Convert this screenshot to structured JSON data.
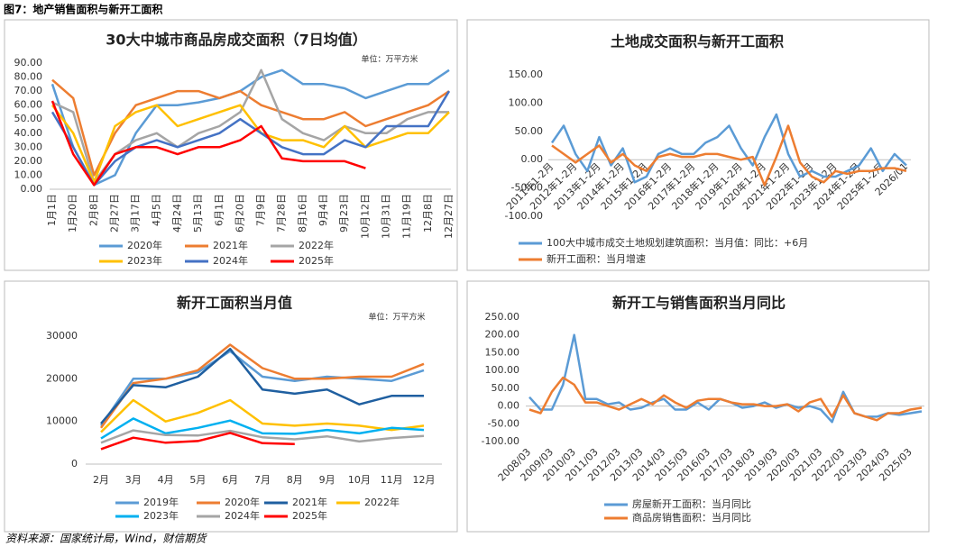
{
  "header": {
    "title": "图7：地产销售面积与新开工面积"
  },
  "source": "资料来源：国家统计局，Wind，财信期货",
  "chart_data": [
    {
      "type": "line",
      "title": "30大中城市商品房成交面积（7日均值）",
      "unit": "单位：万平方米",
      "categories": [
        "1月1日",
        "1月20日",
        "2月8日",
        "2月27日",
        "3月17日",
        "4月5日",
        "4月24日",
        "5月13日",
        "6月1日",
        "6月20日",
        "7月9日",
        "7月28日",
        "8月16日",
        "9月4日",
        "9月23日",
        "10月12日",
        "10月31日",
        "11月19日",
        "12月8日",
        "12月27日"
      ],
      "series": [
        {
          "name": "2020年",
          "color": "#5b9bd5",
          "values": [
            75,
            30,
            3,
            10,
            40,
            60,
            60,
            62,
            65,
            70,
            80,
            85,
            75,
            75,
            72,
            65,
            70,
            75,
            75,
            85
          ]
        },
        {
          "name": "2021年",
          "color": "#ed7d31",
          "values": [
            78,
            65,
            10,
            40,
            60,
            65,
            70,
            70,
            65,
            70,
            60,
            55,
            50,
            50,
            55,
            45,
            50,
            55,
            60,
            70
          ]
        },
        {
          "name": "2022年",
          "color": "#a5a5a5",
          "values": [
            62,
            55,
            5,
            25,
            35,
            40,
            30,
            40,
            45,
            55,
            85,
            50,
            40,
            35,
            45,
            40,
            40,
            50,
            55,
            55
          ]
        },
        {
          "name": "2023年",
          "color": "#ffc000",
          "values": [
            60,
            40,
            5,
            45,
            55,
            60,
            45,
            50,
            55,
            60,
            40,
            35,
            35,
            30,
            45,
            30,
            35,
            40,
            40,
            55
          ]
        },
        {
          "name": "2024年",
          "color": "#4472c4",
          "values": [
            55,
            30,
            3,
            20,
            30,
            35,
            30,
            35,
            40,
            50,
            40,
            30,
            25,
            25,
            35,
            30,
            45,
            45,
            45,
            70
          ]
        },
        {
          "name": "2025年",
          "color": "#ff0000",
          "values": [
            63,
            25,
            3,
            25,
            30,
            30,
            25,
            30,
            30,
            35,
            45,
            22,
            20,
            20,
            20,
            15,
            null,
            null,
            null,
            null
          ]
        }
      ],
      "ylim": [
        0,
        90
      ],
      "yticks": [
        {
          "value": 0,
          "label": "0.00"
        },
        {
          "value": 10,
          "label": "10.00"
        },
        {
          "value": 20,
          "label": "20.00"
        },
        {
          "value": 30,
          "label": "30.00"
        },
        {
          "value": 40,
          "label": "40.00"
        },
        {
          "value": 50,
          "label": "50.00"
        },
        {
          "value": 60,
          "label": "60.00"
        },
        {
          "value": 70,
          "label": "70.00"
        },
        {
          "value": 80,
          "label": "80.00"
        },
        {
          "value": 90,
          "label": "90.00"
        }
      ],
      "legend": "bottom"
    },
    {
      "type": "line",
      "title": "土地成交面积与新开工面积",
      "categories": [
        "2011年1-2月",
        null,
        "2012年1-2月",
        null,
        "2013年1-2月",
        null,
        "2014年1-2月",
        null,
        "2015年1-2月",
        null,
        "2016年1-2月",
        null,
        "2017年1-2月",
        null,
        "2018年1-2月",
        null,
        "2019年1-2月",
        null,
        "2020年1-2月",
        null,
        "2021年1-2月",
        null,
        "2022年1-2月",
        null,
        "2023年1-2月",
        null,
        "2024年1-2月",
        null,
        "2025年1-2月",
        null,
        "2026/01"
      ],
      "series": [
        {
          "name": "100大中城市成交土地规划建筑面积：当月值：同比：+6月",
          "color": "#5b9bd5",
          "values": [
            30,
            60,
            10,
            -20,
            40,
            -10,
            20,
            -40,
            -30,
            10,
            20,
            10,
            10,
            30,
            40,
            60,
            20,
            -10,
            40,
            80,
            10,
            -30,
            -20,
            -30,
            -30,
            -20,
            -10,
            20,
            -20,
            10,
            -10
          ]
        },
        {
          "name": "新开工面积：当月增速",
          "color": "#ed7d31",
          "values": [
            25,
            10,
            -5,
            10,
            25,
            -5,
            10,
            -10,
            -20,
            5,
            10,
            5,
            5,
            10,
            10,
            5,
            0,
            5,
            -45,
            5,
            60,
            -5,
            -30,
            -40,
            -20,
            -25,
            -20,
            -20,
            -15,
            -15,
            -20
          ]
        }
      ],
      "ylim": [
        -100,
        150
      ],
      "yticks": [
        {
          "value": -100,
          "label": "-100.00"
        },
        {
          "value": -50,
          "label": "-50.00"
        },
        {
          "value": 0,
          "label": "0.00"
        },
        {
          "value": 50,
          "label": "50.00"
        },
        {
          "value": 100,
          "label": "100.00"
        },
        {
          "value": 150,
          "label": "150.00"
        }
      ],
      "legend": "bottom"
    },
    {
      "type": "line",
      "title": "新开工面积当月值",
      "unit": "单位：万平方米",
      "categories": [
        "2月",
        "3月",
        "4月",
        "5月",
        "6月",
        "7月",
        "8月",
        "9月",
        "10月",
        "11月",
        "12月"
      ],
      "series": [
        {
          "name": "2019年",
          "color": "#5b9bd5",
          "values": [
            9000,
            20000,
            20000,
            21500,
            26500,
            20500,
            19500,
            20500,
            20000,
            19500,
            22000
          ]
        },
        {
          "name": "2020年",
          "color": "#ed7d31",
          "values": [
            8500,
            19000,
            20000,
            22000,
            28000,
            22500,
            20000,
            20000,
            20500,
            20500,
            23500
          ]
        },
        {
          "name": "2021年",
          "color": "#1f5fa0",
          "values": [
            9500,
            18500,
            18000,
            20500,
            27000,
            17500,
            16500,
            17500,
            14000,
            16000,
            16000
          ]
        },
        {
          "name": "2022年",
          "color": "#ffc000",
          "values": [
            7500,
            15000,
            10000,
            12000,
            15000,
            9500,
            9000,
            9500,
            9000,
            8000,
            9000
          ]
        },
        {
          "name": "2023年",
          "color": "#00b0f0",
          "values": [
            6000,
            10700,
            7200,
            8500,
            10200,
            7200,
            7100,
            8000,
            7200,
            8500,
            8000
          ]
        },
        {
          "name": "2024年",
          "color": "#a5a5a5",
          "values": [
            5000,
            7900,
            6800,
            6700,
            7800,
            6300,
            5800,
            6500,
            5300,
            6100,
            6600
          ]
        },
        {
          "name": "2025年",
          "color": "#ff0000",
          "values": [
            3500,
            6200,
            5000,
            5400,
            7300,
            4900,
            4700,
            null,
            null,
            null,
            null
          ]
        }
      ],
      "ylim": [
        0,
        30000
      ],
      "yticks": [
        0,
        10000,
        20000,
        30000
      ],
      "legend": "bottom"
    },
    {
      "type": "line",
      "title": "新开工与销售面积当月同比",
      "categories": [
        "2008/03",
        null,
        "2009/03",
        null,
        "2010/03",
        null,
        "2011/03",
        null,
        "2012/03",
        null,
        "2013/03",
        null,
        "2014/03",
        null,
        "2015/03",
        null,
        "2016/03",
        null,
        "2017/03",
        null,
        "2018/03",
        null,
        "2019/03",
        null,
        "2020/03",
        null,
        "2021/03",
        null,
        "2022/03",
        null,
        "2023/03",
        null,
        "2024/03",
        null,
        "2025/03",
        null
      ],
      "series": [
        {
          "name": "房屋新开工面积：当月同比",
          "color": "#5b9bd5",
          "values": [
            25,
            -10,
            -10,
            60,
            200,
            20,
            20,
            5,
            10,
            -10,
            -5,
            10,
            20,
            -10,
            -10,
            10,
            -10,
            20,
            10,
            -5,
            0,
            10,
            -5,
            5,
            -5,
            0,
            -10,
            -45,
            40,
            -20,
            -30,
            -30,
            -20,
            -25,
            -20,
            -15
          ]
        },
        {
          "name": "商品房销售面积：当月同比",
          "color": "#ed7d31",
          "values": [
            -10,
            -20,
            40,
            80,
            60,
            10,
            10,
            0,
            -10,
            5,
            20,
            5,
            30,
            10,
            -5,
            15,
            20,
            20,
            10,
            5,
            5,
            0,
            0,
            5,
            -15,
            10,
            20,
            -30,
            30,
            -20,
            -30,
            -40,
            -20,
            -20,
            -10,
            -5
          ]
        }
      ],
      "ylim": [
        -100,
        250
      ],
      "yticks": [
        {
          "value": -100,
          "label": "-100.00"
        },
        {
          "value": -50,
          "label": "-50.00"
        },
        {
          "value": 0,
          "label": "0.00"
        },
        {
          "value": 50,
          "label": "50.00"
        },
        {
          "value": 100,
          "label": "100.00"
        },
        {
          "value": 150,
          "label": "150.00"
        },
        {
          "value": 200,
          "label": "200.00"
        },
        {
          "value": 250,
          "label": "250.00"
        }
      ],
      "legend": "bottom"
    }
  ]
}
